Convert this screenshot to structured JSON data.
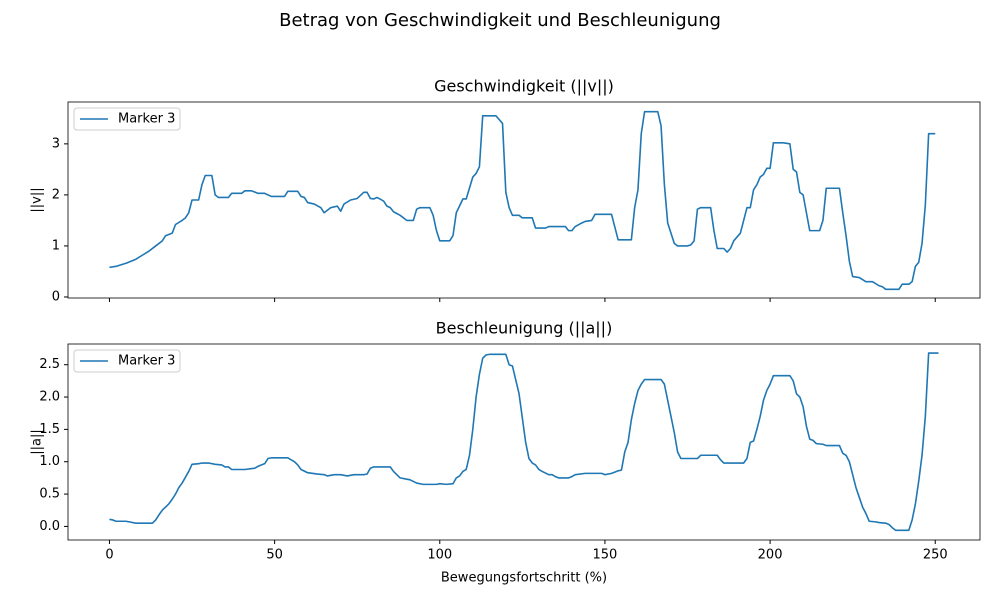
{
  "title": "Betrag von Geschwindigkeit und Beschleunigung",
  "chart_data": [
    {
      "type": "line",
      "title": "Geschwindigkeit (||v||)",
      "ylabel": "||v||",
      "xlim": [
        -12.55,
        263.55
      ],
      "ylim": [
        -0.02,
        3.82
      ],
      "yticks": [
        0,
        1,
        2,
        3
      ],
      "legend": "upper left",
      "x": [
        0,
        2,
        5,
        8,
        10,
        12,
        14,
        16,
        17,
        19,
        20,
        22,
        23,
        24,
        25,
        27,
        28,
        29,
        31,
        32,
        33,
        36,
        37,
        40,
        41,
        43,
        45,
        47,
        49,
        53,
        54,
        57,
        58,
        59,
        60,
        62,
        64,
        65,
        67,
        69,
        70,
        71,
        73,
        75,
        77,
        78,
        79,
        80,
        81,
        83,
        84,
        85,
        86,
        88,
        90,
        92,
        93,
        94,
        97,
        98,
        99,
        100,
        103,
        104,
        105,
        107,
        108,
        110,
        111,
        112,
        113,
        117,
        119,
        120,
        121,
        122,
        124,
        125,
        128,
        129,
        132,
        133,
        138,
        139,
        140,
        141,
        143,
        144,
        146,
        147,
        152,
        154,
        158,
        159,
        160,
        161,
        162,
        166,
        167,
        168,
        169,
        171,
        172,
        175,
        176,
        177,
        178,
        179,
        182,
        183,
        184,
        186,
        187,
        188,
        189,
        191,
        192,
        193,
        194,
        195,
        196,
        197,
        198,
        199,
        200,
        201,
        204,
        206,
        207,
        208,
        209,
        210,
        212,
        215,
        216,
        217,
        221,
        222,
        223,
        224,
        225,
        227,
        229,
        231,
        233,
        234,
        235,
        239,
        240,
        242,
        243,
        244,
        245,
        246,
        247,
        248,
        250
      ],
      "series": [
        {
          "name": "Marker 3",
          "color": "#1f77b4",
          "values": [
            0.58,
            0.6,
            0.66,
            0.74,
            0.82,
            0.9,
            1.0,
            1.1,
            1.2,
            1.25,
            1.42,
            1.5,
            1.55,
            1.65,
            1.9,
            1.9,
            2.2,
            2.38,
            2.38,
            2.0,
            1.95,
            1.95,
            2.03,
            2.03,
            2.08,
            2.08,
            2.03,
            2.03,
            1.97,
            1.97,
            2.07,
            2.07,
            1.97,
            1.95,
            1.85,
            1.82,
            1.75,
            1.65,
            1.75,
            1.78,
            1.68,
            1.82,
            1.9,
            1.93,
            2.05,
            2.05,
            1.93,
            1.92,
            1.95,
            1.88,
            1.78,
            1.75,
            1.67,
            1.6,
            1.5,
            1.5,
            1.72,
            1.75,
            1.75,
            1.6,
            1.3,
            1.1,
            1.1,
            1.2,
            1.65,
            1.92,
            1.92,
            2.35,
            2.42,
            2.55,
            3.55,
            3.55,
            3.4,
            2.05,
            1.75,
            1.6,
            1.6,
            1.55,
            1.55,
            1.35,
            1.35,
            1.38,
            1.38,
            1.3,
            1.3,
            1.38,
            1.45,
            1.48,
            1.5,
            1.62,
            1.62,
            1.12,
            1.12,
            1.75,
            2.1,
            3.2,
            3.63,
            3.63,
            3.35,
            2.2,
            1.45,
            1.05,
            1.0,
            1.0,
            1.02,
            1.1,
            1.72,
            1.75,
            1.75,
            1.3,
            0.95,
            0.95,
            0.88,
            0.95,
            1.1,
            1.25,
            1.5,
            1.75,
            1.75,
            2.1,
            2.2,
            2.35,
            2.4,
            2.52,
            2.52,
            3.02,
            3.02,
            3.0,
            2.5,
            2.45,
            2.05,
            2.0,
            1.3,
            1.3,
            1.5,
            2.13,
            2.13,
            1.65,
            1.2,
            0.7,
            0.4,
            0.38,
            0.3,
            0.3,
            0.22,
            0.2,
            0.15,
            0.15,
            0.25,
            0.25,
            0.3,
            0.6,
            0.68,
            1.05,
            1.8,
            3.2,
            3.2
          ]
        }
      ]
    },
    {
      "type": "line",
      "title": "Beschleunigung (||a||)",
      "ylabel": "||a||",
      "xlabel": "Bewegungsfortschritt (%)",
      "xlim": [
        -12.55,
        263.55
      ],
      "ylim": [
        -0.21,
        2.82
      ],
      "xticks": [
        0,
        50,
        100,
        150,
        200,
        250
      ],
      "yticks": [
        {
          "value": 0,
          "label": "0.0"
        },
        0.5,
        {
          "value": 1,
          "label": "1.0"
        },
        1.5,
        {
          "value": 2,
          "label": "2.0"
        },
        2.5
      ],
      "legend": "upper left",
      "x": [
        0,
        1,
        2,
        5,
        6,
        8,
        13,
        14,
        15,
        16,
        18,
        19,
        20,
        21,
        22,
        24,
        25,
        27,
        28,
        30,
        32,
        34,
        35,
        36,
        37,
        41,
        44,
        45,
        47,
        48,
        49,
        54,
        55,
        56,
        57,
        58,
        60,
        63,
        65,
        66,
        68,
        70,
        72,
        74,
        77,
        78,
        79,
        80,
        85,
        86,
        87,
        88,
        90,
        91,
        93,
        95,
        99,
        100,
        102,
        104,
        105,
        106,
        107,
        108,
        109,
        110,
        111,
        112,
        113,
        114,
        115,
        120,
        121,
        122,
        124,
        126,
        127,
        128,
        129,
        130,
        131,
        133,
        134,
        135,
        136,
        139,
        140,
        141,
        144,
        149,
        150,
        152,
        153,
        154,
        155,
        156,
        157,
        158,
        159,
        160,
        161,
        162,
        167,
        168,
        169,
        170,
        171,
        172,
        173,
        178,
        179,
        184,
        185,
        186,
        192,
        193,
        194,
        195,
        196,
        197,
        198,
        199,
        200,
        201,
        206,
        207,
        208,
        209,
        210,
        211,
        212,
        213,
        214,
        216,
        217,
        221,
        222,
        223,
        224,
        225,
        226,
        227,
        228,
        229,
        230,
        232,
        233,
        235,
        236,
        237,
        238,
        242,
        243,
        244,
        245,
        246,
        247,
        248,
        251
      ],
      "series": [
        {
          "name": "Marker 3",
          "color": "#1f77b4",
          "values": [
            0.11,
            0.1,
            0.08,
            0.08,
            0.07,
            0.05,
            0.05,
            0.1,
            0.18,
            0.25,
            0.35,
            0.42,
            0.5,
            0.6,
            0.67,
            0.85,
            0.96,
            0.97,
            0.98,
            0.98,
            0.96,
            0.95,
            0.92,
            0.92,
            0.88,
            0.88,
            0.9,
            0.93,
            0.97,
            1.05,
            1.06,
            1.06,
            1.03,
            1.0,
            0.95,
            0.88,
            0.83,
            0.81,
            0.8,
            0.78,
            0.8,
            0.8,
            0.78,
            0.8,
            0.8,
            0.81,
            0.9,
            0.92,
            0.92,
            0.85,
            0.8,
            0.75,
            0.73,
            0.72,
            0.67,
            0.65,
            0.65,
            0.66,
            0.65,
            0.66,
            0.75,
            0.78,
            0.85,
            0.88,
            1.1,
            1.5,
            2.0,
            2.35,
            2.6,
            2.65,
            2.66,
            2.66,
            2.5,
            2.48,
            2.05,
            1.3,
            1.05,
            0.98,
            0.95,
            0.88,
            0.85,
            0.8,
            0.8,
            0.77,
            0.75,
            0.75,
            0.77,
            0.8,
            0.82,
            0.82,
            0.8,
            0.82,
            0.84,
            0.86,
            0.87,
            1.15,
            1.3,
            1.65,
            1.9,
            2.1,
            2.2,
            2.27,
            2.27,
            2.2,
            1.95,
            1.7,
            1.45,
            1.15,
            1.05,
            1.05,
            1.1,
            1.1,
            1.03,
            0.98,
            0.98,
            1.05,
            1.3,
            1.32,
            1.5,
            1.7,
            1.95,
            2.1,
            2.2,
            2.33,
            2.33,
            2.25,
            2.05,
            2.0,
            1.85,
            1.55,
            1.35,
            1.33,
            1.28,
            1.27,
            1.25,
            1.25,
            1.13,
            1.1,
            1.0,
            0.8,
            0.6,
            0.45,
            0.3,
            0.2,
            0.08,
            0.07,
            0.06,
            0.05,
            0.03,
            -0.02,
            -0.06,
            -0.06,
            0.1,
            0.35,
            0.7,
            1.1,
            1.7,
            2.68,
            2.68
          ]
        }
      ]
    }
  ]
}
